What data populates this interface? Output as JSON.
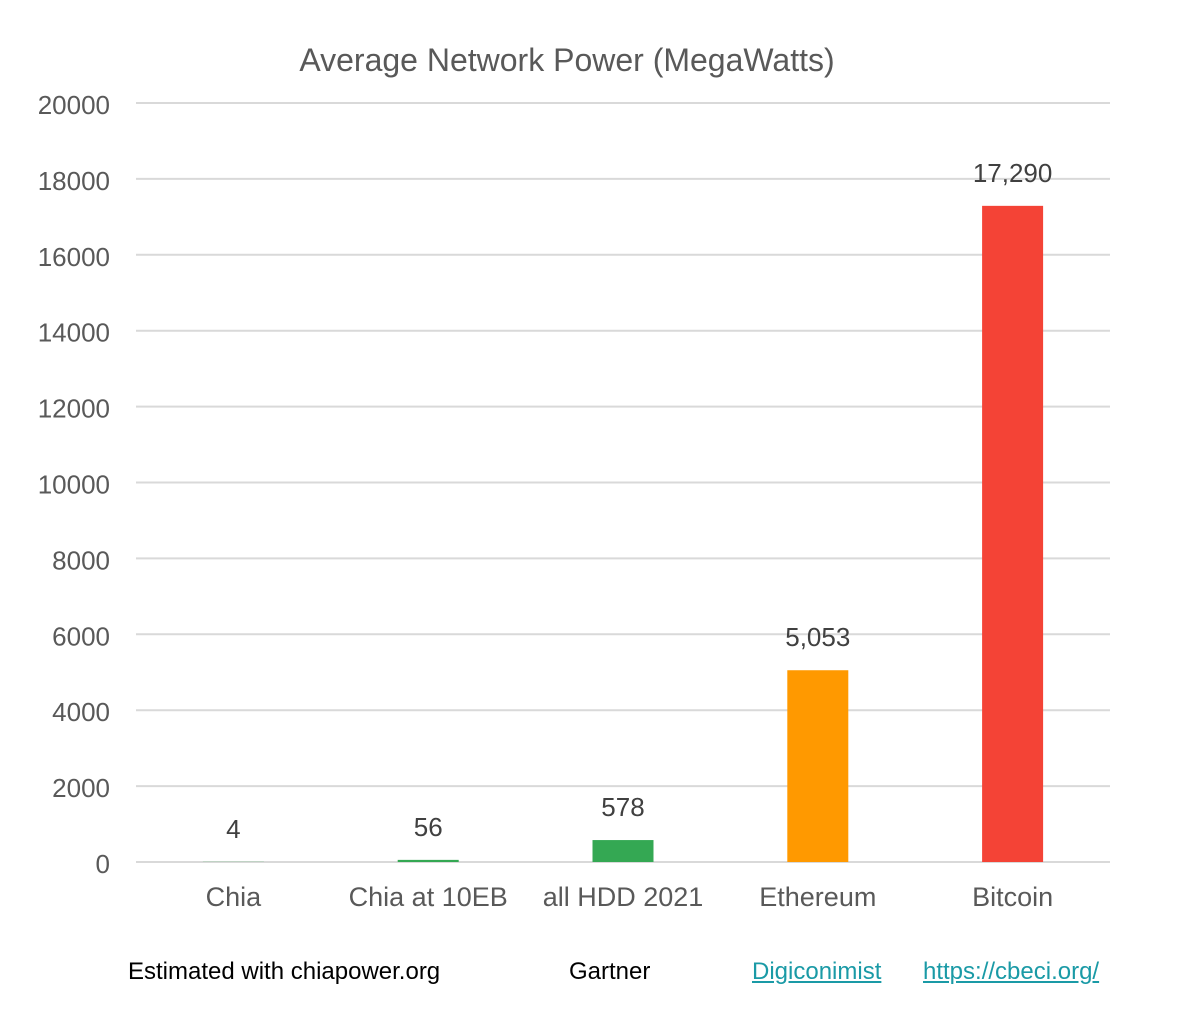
{
  "chart_data": {
    "type": "bar",
    "title": "Average Network Power (MegaWatts)",
    "xlabel": "",
    "ylabel": "",
    "ylim": [
      0,
      20000
    ],
    "yticks": [
      0,
      2000,
      4000,
      6000,
      8000,
      10000,
      12000,
      14000,
      16000,
      18000,
      20000
    ],
    "grid": true,
    "categories": [
      "Chia",
      "Chia at 10EB",
      "all HDD 2021",
      "Ethereum",
      "Bitcoin"
    ],
    "values": [
      4,
      56,
      578,
      5053,
      17290
    ],
    "data_labels": [
      "4",
      "56",
      "578",
      "5,053",
      "17,290"
    ],
    "bar_colors": [
      "#34a853",
      "#34a853",
      "#34a853",
      "#ff9900",
      "#f44336"
    ]
  },
  "sources": {
    "chia": "Estimated with chiapower.org",
    "hdd": "Gartner",
    "ethereum": "Digiconimist",
    "bitcoin": "https://cbeci.org/"
  }
}
